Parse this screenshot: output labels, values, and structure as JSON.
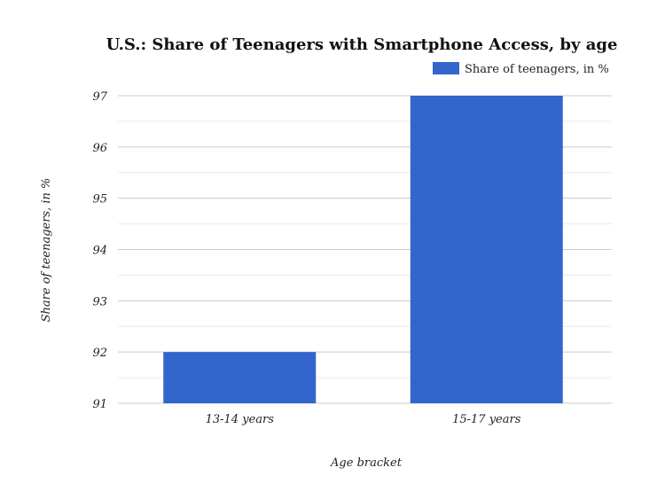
{
  "chart_data": {
    "type": "bar",
    "title": "U.S.: Share of Teenagers with Smartphone Access, by age",
    "xlabel": "Age bracket",
    "ylabel": "Share of teenagers, in %",
    "categories": [
      "13-14 years",
      "15-17 years"
    ],
    "series": [
      {
        "name": "Share of teenagers, in %",
        "values": [
          92,
          97
        ],
        "color": "#3366cc"
      }
    ],
    "ylim": [
      91,
      97
    ],
    "yticks": [
      91,
      92,
      93,
      94,
      95,
      96,
      97
    ],
    "grid": true,
    "legend": "top-right"
  }
}
